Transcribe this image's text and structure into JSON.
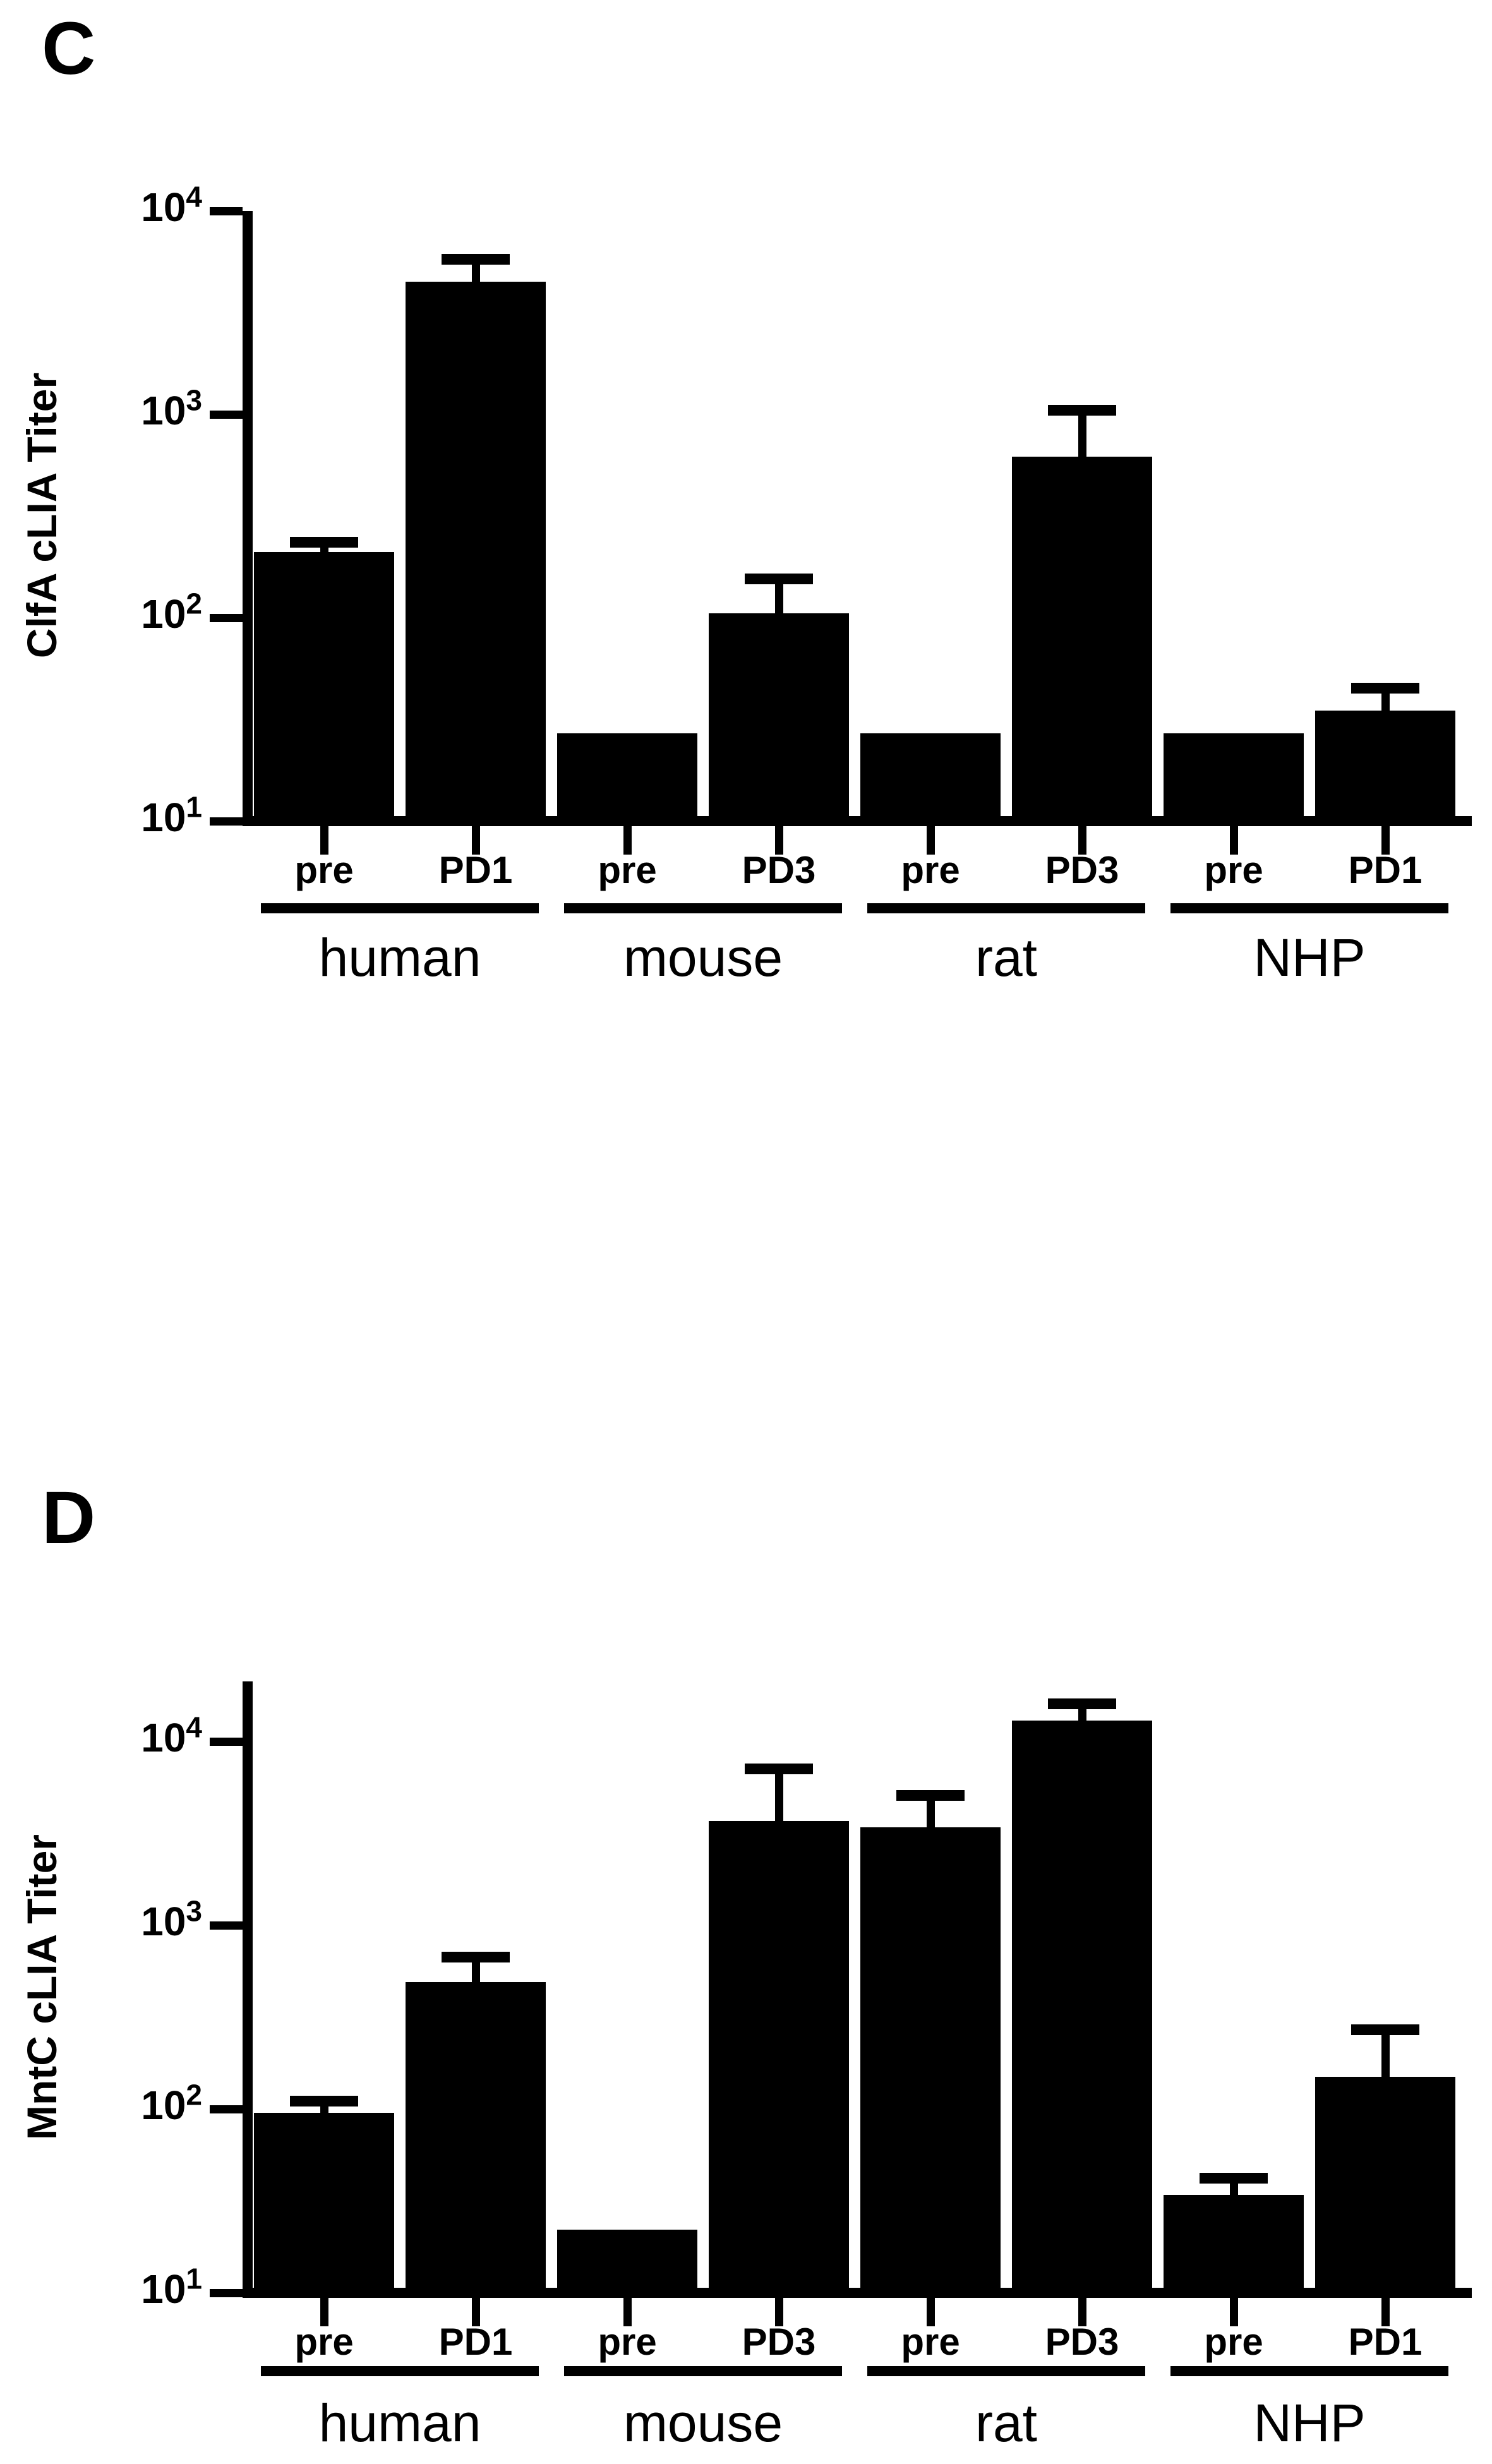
{
  "figure": {
    "background_color": "#ffffff",
    "ink_color": "#000000",
    "description_panels": [
      "C",
      "D"
    ]
  },
  "chart_data": [
    {
      "type": "bar",
      "panel_label": "C",
      "title": "",
      "xlabel": "",
      "ylabel": "ClfA cLIA Titer",
      "yscale": "log",
      "ylim": [
        10,
        10000
      ],
      "ybase": 10,
      "ytick_exponents": [
        1,
        2,
        3,
        4
      ],
      "grid": false,
      "legend": false,
      "bar_color": "#000000",
      "error_bars": "upper only",
      "categories": [
        "human pre",
        "human PD1",
        "mouse pre",
        "mouse PD3",
        "rat pre",
        "rat PD3",
        "NHP pre",
        "NHP PD1"
      ],
      "values": [
        210,
        4500,
        27,
        105,
        27,
        620,
        27,
        35
      ],
      "error_tops": [
        235,
        5800,
        null,
        155,
        null,
        1050,
        null,
        45
      ],
      "groups": [
        {
          "label": "human",
          "bars": [
            {
              "label": "pre",
              "value": 210,
              "error_top": 235
            },
            {
              "label": "PD1",
              "value": 4500,
              "error_top": 5800
            }
          ]
        },
        {
          "label": "mouse",
          "bars": [
            {
              "label": "pre",
              "value": 27,
              "error_top": null
            },
            {
              "label": "PD3",
              "value": 105,
              "error_top": 155
            }
          ]
        },
        {
          "label": "rat",
          "bars": [
            {
              "label": "pre",
              "value": 27,
              "error_top": null
            },
            {
              "label": "PD3",
              "value": 620,
              "error_top": 1050
            }
          ]
        },
        {
          "label": "NHP",
          "bars": [
            {
              "label": "pre",
              "value": 27,
              "error_top": null
            },
            {
              "label": "PD1",
              "value": 35,
              "error_top": 45
            }
          ]
        }
      ]
    },
    {
      "type": "bar",
      "panel_label": "D",
      "title": "",
      "xlabel": "",
      "ylabel": "MntC cLIA Titer",
      "yscale": "log",
      "ylim": [
        10,
        21000
      ],
      "ybase": 10,
      "ytick_exponents": [
        1,
        2,
        3,
        4
      ],
      "grid": false,
      "legend": false,
      "bar_color": "#000000",
      "error_bars": "upper only",
      "categories": [
        "human pre",
        "human PD1",
        "mouse pre",
        "mouse PD3",
        "rat pre",
        "rat PD3",
        "NHP pre",
        "NHP PD1"
      ],
      "values": [
        95,
        490,
        22,
        3700,
        3400,
        13000,
        34,
        150
      ],
      "error_tops": [
        110,
        670,
        null,
        7100,
        5100,
        16000,
        42,
        270
      ],
      "groups": [
        {
          "label": "human",
          "bars": [
            {
              "label": "pre",
              "value": 95,
              "error_top": 110
            },
            {
              "label": "PD1",
              "value": 490,
              "error_top": 670
            }
          ]
        },
        {
          "label": "mouse",
          "bars": [
            {
              "label": "pre",
              "value": 22,
              "error_top": null
            },
            {
              "label": "PD3",
              "value": 3700,
              "error_top": 7100
            }
          ]
        },
        {
          "label": "rat",
          "bars": [
            {
              "label": "pre",
              "value": 3400,
              "error_top": 5100
            },
            {
              "label": "PD3",
              "value": 13000,
              "error_top": 16000
            }
          ]
        },
        {
          "label": "NHP",
          "bars": [
            {
              "label": "pre",
              "value": 34,
              "error_top": 42
            },
            {
              "label": "PD1",
              "value": 150,
              "error_top": 270
            }
          ]
        }
      ]
    }
  ]
}
